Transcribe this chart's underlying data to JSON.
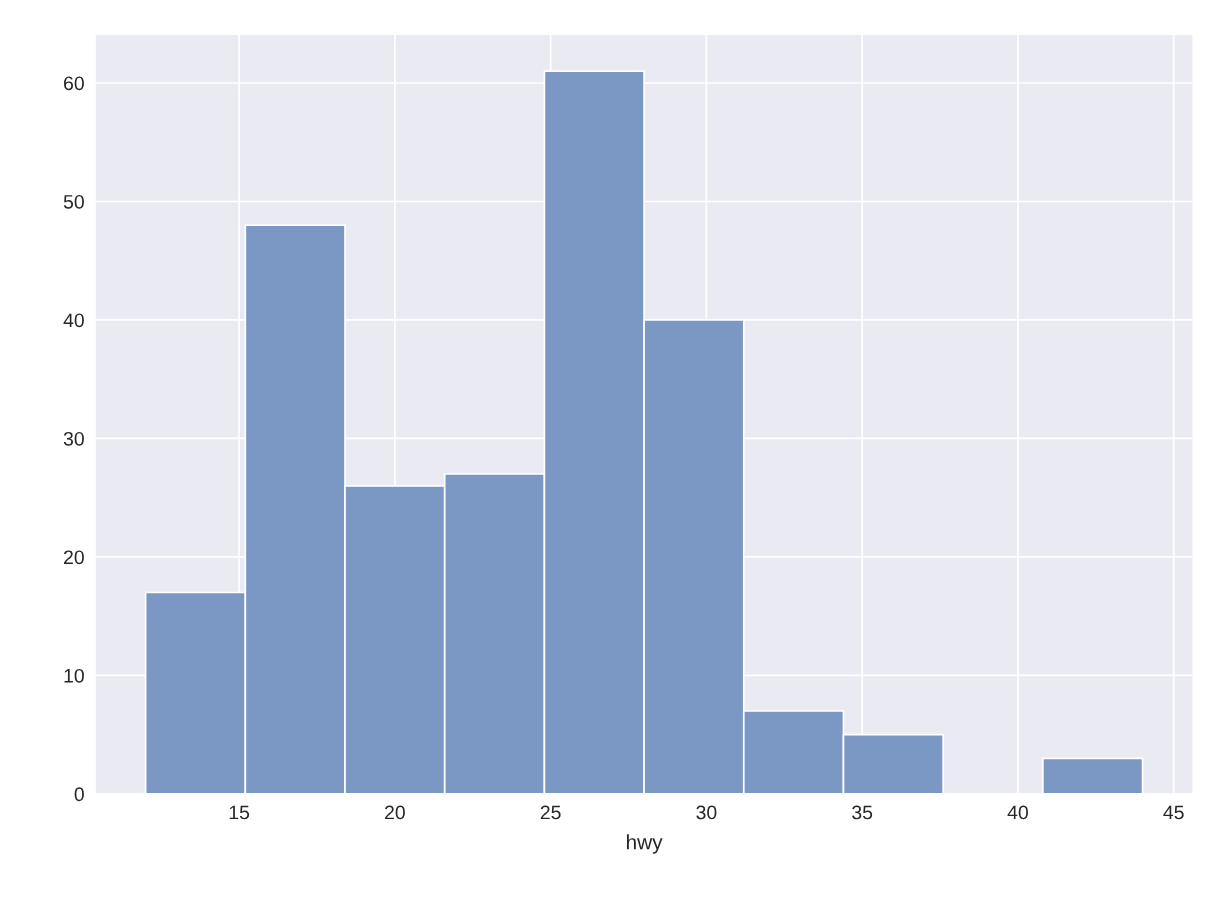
{
  "chart_data": {
    "type": "histogram",
    "xlabel": "hwy",
    "bins": [
      12,
      15.2,
      18.4,
      21.6,
      24.8,
      28,
      31.2,
      34.4,
      37.6,
      40.8,
      44
    ],
    "values": [
      17,
      48,
      26,
      27,
      61,
      40,
      7,
      5,
      0,
      3
    ],
    "color": "#7b98c4",
    "xlim": [
      10.4,
      45.6
    ],
    "xticks": [
      15,
      20,
      25,
      30,
      35,
      40,
      45
    ],
    "ylim": [
      0,
      64.05
    ],
    "yticks": [
      0,
      10,
      20,
      30,
      40,
      50,
      60
    ],
    "grid": true
  }
}
